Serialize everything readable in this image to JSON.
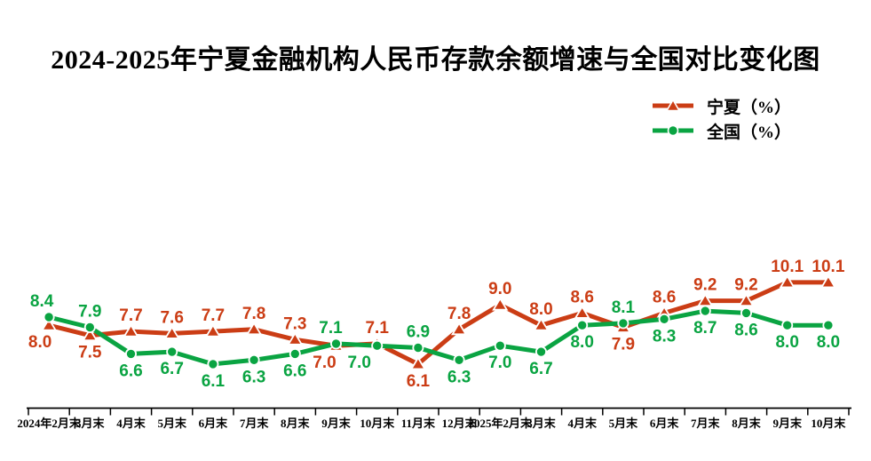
{
  "title": "2024-2025年宁夏金融机构人民币存款余额增速与全国对比变化图",
  "chart_data": {
    "type": "line",
    "title": "2024-2025年宁夏金融机构人民币存款余额增速与全国对比变化图",
    "xlabel": "",
    "ylabel": "",
    "grid": false,
    "legend_position": "top-right",
    "ylim": [
      5.5,
      10.6
    ],
    "axis_color": "#000000",
    "categories": [
      "2024年2月末",
      "3月末",
      "4月末",
      "5月末",
      "6月末",
      "7月末",
      "8月末",
      "9月末",
      "10月末",
      "11月末",
      "12月末",
      "2025年2月末",
      "3月末",
      "4月末",
      "5月末",
      "6月末",
      "7月末",
      "8月末",
      "9月末",
      "10月末"
    ],
    "series": [
      {
        "key": "ningxia",
        "name": "宁夏（%）",
        "color": "#cb3d15",
        "marker": "triangle",
        "values": [
          8.0,
          7.5,
          7.7,
          7.6,
          7.7,
          7.8,
          7.3,
          7.0,
          7.1,
          6.1,
          7.8,
          9.0,
          8.0,
          8.6,
          7.9,
          8.6,
          9.2,
          9.2,
          10.1,
          10.1
        ],
        "label_side": [
          "b",
          "b",
          "a",
          "a",
          "a",
          "a",
          "a",
          "b",
          "a",
          "b",
          "a",
          "a",
          "a",
          "a",
          "b",
          "a",
          "a",
          "a",
          "a",
          "a"
        ],
        "label_dx": {
          "0": -10,
          "7": -13
        }
      },
      {
        "key": "quanguo",
        "name": "全国（%）",
        "color": "#0aa442",
        "marker": "circle",
        "values": [
          8.4,
          7.9,
          6.6,
          6.7,
          6.1,
          6.3,
          6.6,
          7.1,
          7.0,
          6.9,
          6.3,
          7.0,
          6.7,
          8.0,
          8.1,
          8.3,
          8.7,
          8.6,
          8.0,
          8.0
        ],
        "label_side": [
          "a",
          "a",
          "b",
          "b",
          "b",
          "b",
          "b",
          "a",
          "b",
          "a",
          "b",
          "b",
          "b",
          "b",
          "a",
          "b",
          "b",
          "b",
          "b",
          "b"
        ],
        "label_dx": {
          "0": -8,
          "7": -6,
          "8": -20
        }
      }
    ]
  }
}
